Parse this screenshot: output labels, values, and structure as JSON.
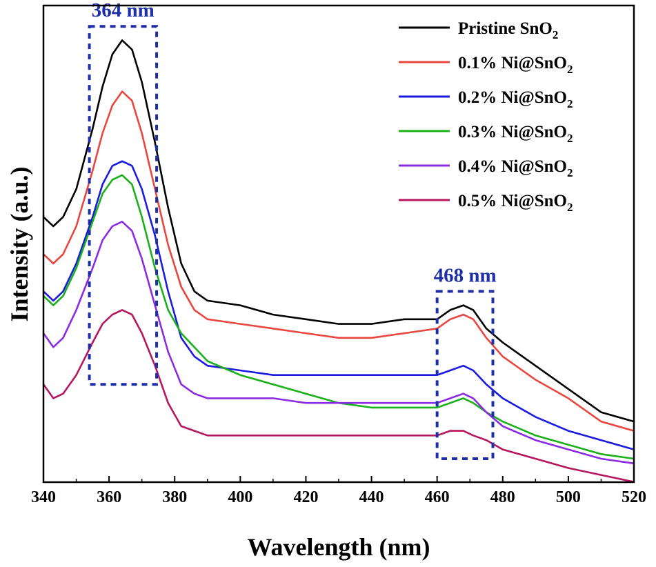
{
  "chart_data": {
    "type": "line",
    "xlabel": "Wavelength (nm)",
    "ylabel": "Intensity (a.u.)",
    "xlim": [
      340,
      520
    ],
    "ylim": [
      0,
      100
    ],
    "x_ticks": [
      340,
      360,
      380,
      400,
      420,
      440,
      460,
      480,
      500,
      520
    ],
    "y_ticks_shown": false,
    "grid": false,
    "legend_position": "top-right",
    "x": [
      340,
      343,
      346,
      350,
      355,
      358,
      361,
      364,
      367,
      370,
      374,
      378,
      382,
      386,
      390,
      400,
      410,
      420,
      430,
      440,
      450,
      460,
      464,
      468,
      471,
      475,
      480,
      490,
      500,
      510,
      520
    ],
    "series": [
      {
        "name": "Pristine SnO2",
        "name_main": "Pristine SnO",
        "name_sub": "2",
        "color": "#000000",
        "values": [
          56,
          54,
          56,
          62,
          75,
          84,
          91,
          94,
          92,
          85,
          72,
          58,
          46,
          40,
          38,
          37,
          35,
          34,
          33,
          33,
          34,
          34,
          36,
          37,
          36,
          32,
          29,
          24,
          19,
          14,
          12
        ]
      },
      {
        "name": "0.1% Ni@SnO2",
        "name_main": "0.1% Ni@SnO",
        "name_sub": "2",
        "color": "#e8463e",
        "values": [
          48,
          46,
          48,
          54,
          66,
          74,
          80,
          83,
          81,
          74,
          62,
          50,
          41,
          36,
          34,
          33,
          32,
          31,
          30,
          30,
          31,
          32,
          34,
          35,
          34,
          30,
          26,
          21,
          17,
          12,
          10
        ]
      },
      {
        "name": "0.2% Ni@SnO2",
        "name_main": "0.2% Ni@SnO",
        "name_sub": "2",
        "color": "#1a1ae0",
        "values": [
          40,
          38,
          40,
          46,
          56,
          63,
          67,
          68,
          67,
          62,
          52,
          40,
          30,
          26,
          24,
          23,
          22,
          22,
          22,
          22,
          22,
          22,
          23,
          24,
          23,
          20,
          17,
          13,
          10,
          8,
          6
        ]
      },
      {
        "name": "0.3% Ni@SnO2",
        "name_main": "0.3% Ni@SnO",
        "name_sub": "2",
        "color": "#1ab01a",
        "values": [
          39,
          37,
          39,
          45,
          55,
          61,
          64,
          65,
          63,
          56,
          45,
          36,
          31,
          28,
          25,
          22,
          20,
          18,
          16,
          15,
          15,
          15,
          16,
          17,
          16,
          14,
          12,
          9,
          7,
          5,
          4
        ]
      },
      {
        "name": "0.4% Ni@SnO2",
        "name_main": "0.4% Ni@SnO",
        "name_sub": "2",
        "color": "#8b2be2",
        "values": [
          31,
          28,
          30,
          36,
          45,
          51,
          54,
          55,
          53,
          47,
          37,
          27,
          20,
          18,
          17,
          17,
          17,
          16,
          16,
          16,
          16,
          16,
          17,
          18,
          17,
          14,
          11,
          8,
          6,
          4,
          3
        ]
      },
      {
        "name": "0.5% Ni@SnO2",
        "name_main": "0.5% Ni@SnO",
        "name_sub": "2",
        "color": "#b5165e",
        "values": [
          20,
          17,
          18,
          22,
          29,
          33,
          35,
          36,
          35,
          31,
          24,
          16,
          11,
          10,
          9,
          9,
          9,
          9,
          9,
          9,
          9,
          9,
          10,
          10,
          9,
          8,
          6,
          4,
          2,
          0.5,
          -1
        ]
      }
    ],
    "annotations": [
      {
        "label": "364 nm",
        "x_range": [
          354,
          374.5
        ],
        "y_range": [
          20,
          97
        ],
        "color": "#1f2fa8"
      },
      {
        "label": "468 nm",
        "x_range": [
          460,
          477
        ],
        "y_range": [
          4,
          40
        ],
        "color": "#1f2fa8"
      }
    ]
  }
}
